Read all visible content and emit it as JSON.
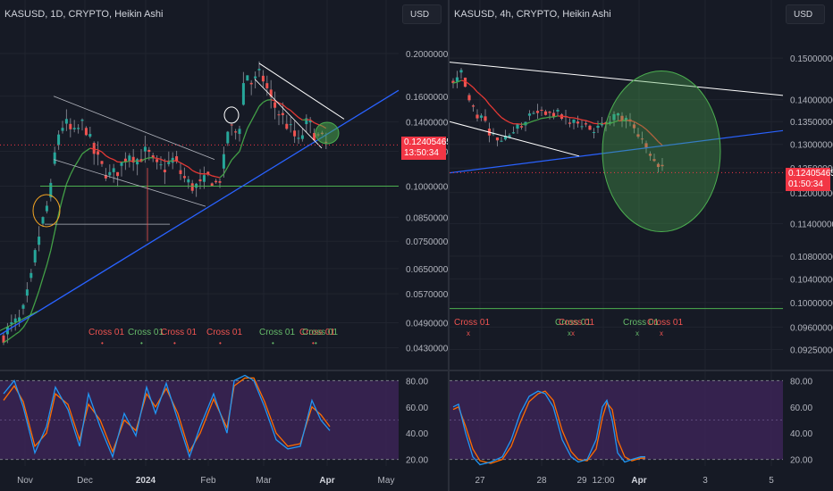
{
  "colors": {
    "background": "#161a25",
    "grid": "#20242f",
    "up_candle": "#26a69a",
    "down_candle": "#ef5350",
    "wick": "#787b86",
    "trendline_blue": "#2962ff",
    "channel_line": "#b2b5be",
    "support_green": "#4caf50",
    "cross_red": "#ef5350",
    "cross_green": "#66bb6a",
    "rsi_band": "#3b2456",
    "stoch_k": "#2196f3",
    "stoch_d": "#ff6d00",
    "price_tag": "#f23645",
    "highlight_orange": "#f5a623",
    "highlight_green": "#4caf50"
  },
  "left_panel": {
    "title": "KASUSD, 1D, CRYPTO, Heikin Ashi",
    "currency_button": "USD",
    "price_tag": {
      "price": "0.12405465",
      "countdown": "13:50:34"
    },
    "cross_label": "Cross 01",
    "x_labels": [
      "Nov",
      "Dec",
      "2024",
      "Feb",
      "Mar",
      "Apr",
      "May"
    ],
    "oscillator_labels": [
      "80.00",
      "60.00",
      "40.00",
      "20.00"
    ]
  },
  "right_panel": {
    "title": "KASUSD, 4h, CRYPTO, Heikin Ashi",
    "currency_button": "USD",
    "price_tag": {
      "price": "0.12405465",
      "countdown": "01:50:34"
    },
    "cross_label": "Cross 01",
    "x_labels": [
      "27",
      "28",
      "29",
      "12:00",
      "Apr",
      "3",
      "5"
    ],
    "oscillator_labels": [
      "80.00",
      "60.00",
      "40.00",
      "20.00"
    ]
  },
  "chart_data": [
    {
      "type": "candlestick",
      "title": "KASUSD, 1D, CRYPTO, Heikin Ashi",
      "y_axis_labels": [
        "0.20000000",
        "0.16000000",
        "0.14000000",
        "0.12000000",
        "0.10000000",
        "0.08500000",
        "0.07500000",
        "0.06500000",
        "0.05700000",
        "0.04900000",
        "0.04300000"
      ],
      "ticks": [
        0.2,
        0.16,
        0.14,
        0.12,
        0.1,
        0.085,
        0.075,
        0.065,
        0.057,
        0.049,
        0.043
      ],
      "ylim": [
        0.04,
        0.23
      ],
      "log_scale": true,
      "x_dates": [
        "Nov",
        "Dec",
        "2024",
        "Feb",
        "Mar",
        "Apr",
        "May"
      ],
      "last_price": 0.12405465,
      "support_level": 0.1,
      "price_path": [
        [
          0,
          0.046
        ],
        [
          8,
          0.048
        ],
        [
          20,
          0.05
        ],
        [
          30,
          0.06
        ],
        [
          38,
          0.075
        ],
        [
          45,
          0.085
        ],
        [
          52,
          0.095
        ],
        [
          60,
          0.13
        ],
        [
          68,
          0.14
        ],
        [
          78,
          0.13
        ],
        [
          90,
          0.14
        ],
        [
          100,
          0.12
        ],
        [
          110,
          0.11
        ],
        [
          120,
          0.105
        ],
        [
          130,
          0.11
        ],
        [
          140,
          0.12
        ],
        [
          150,
          0.115
        ],
        [
          160,
          0.12
        ],
        [
          170,
          0.11
        ],
        [
          180,
          0.11
        ],
        [
          190,
          0.115
        ],
        [
          200,
          0.105
        ],
        [
          210,
          0.1
        ],
        [
          220,
          0.1
        ],
        [
          230,
          0.105
        ],
        [
          240,
          0.1
        ],
        [
          247,
          0.115
        ],
        [
          252,
          0.14
        ],
        [
          258,
          0.13
        ],
        [
          265,
          0.14
        ],
        [
          270,
          0.185
        ],
        [
          278,
          0.17
        ],
        [
          288,
          0.18
        ],
        [
          300,
          0.155
        ],
        [
          310,
          0.145
        ],
        [
          320,
          0.135
        ],
        [
          330,
          0.125
        ],
        [
          340,
          0.14
        ],
        [
          350,
          0.13
        ],
        [
          362,
          0.124
        ]
      ],
      "cross_markers": [
        {
          "label": "Cross 01",
          "color": "red"
        },
        {
          "label": "Cross 01",
          "color": "green"
        },
        {
          "label": "Cross 01",
          "color": "red"
        },
        {
          "label": "Cross 01",
          "color": "red"
        },
        {
          "label": "Cross 01",
          "color": "green"
        },
        {
          "label": "Cross 01",
          "color": "red"
        },
        {
          "label": "Cross 01",
          "color": "green"
        }
      ],
      "oscillator": {
        "ylim": [
          15,
          85
        ],
        "k": [
          [
            0,
            70
          ],
          [
            12,
            80
          ],
          [
            22,
            60
          ],
          [
            35,
            25
          ],
          [
            48,
            45
          ],
          [
            58,
            75
          ],
          [
            72,
            58
          ],
          [
            85,
            30
          ],
          [
            95,
            70
          ],
          [
            108,
            45
          ],
          [
            122,
            22
          ],
          [
            135,
            55
          ],
          [
            148,
            38
          ],
          [
            160,
            75
          ],
          [
            170,
            55
          ],
          [
            182,
            78
          ],
          [
            195,
            50
          ],
          [
            208,
            22
          ],
          [
            220,
            45
          ],
          [
            235,
            70
          ],
          [
            250,
            40
          ],
          [
            258,
            80
          ],
          [
            270,
            84
          ],
          [
            280,
            80
          ],
          [
            292,
            60
          ],
          [
            305,
            35
          ],
          [
            318,
            28
          ],
          [
            332,
            30
          ],
          [
            345,
            65
          ],
          [
            355,
            50
          ],
          [
            365,
            42
          ]
        ],
        "d": [
          [
            0,
            65
          ],
          [
            12,
            76
          ],
          [
            22,
            64
          ],
          [
            35,
            30
          ],
          [
            48,
            40
          ],
          [
            58,
            70
          ],
          [
            72,
            62
          ],
          [
            85,
            35
          ],
          [
            95,
            62
          ],
          [
            108,
            50
          ],
          [
            122,
            26
          ],
          [
            135,
            50
          ],
          [
            148,
            42
          ],
          [
            160,
            70
          ],
          [
            170,
            60
          ],
          [
            182,
            74
          ],
          [
            195,
            55
          ],
          [
            208,
            26
          ],
          [
            220,
            40
          ],
          [
            235,
            66
          ],
          [
            250,
            44
          ],
          [
            258,
            76
          ],
          [
            270,
            82
          ],
          [
            280,
            82
          ],
          [
            292,
            64
          ],
          [
            305,
            40
          ],
          [
            318,
            30
          ],
          [
            332,
            32
          ],
          [
            345,
            60
          ],
          [
            355,
            54
          ],
          [
            365,
            45
          ]
        ]
      }
    },
    {
      "type": "candlestick",
      "title": "KASUSD, 4h, CRYPTO, Heikin Ashi",
      "y_axis_labels": [
        "0.15000000",
        "0.14000000",
        "0.13500000",
        "0.13000000",
        "0.12500000",
        "0.12000000",
        "0.11400000",
        "0.10800000",
        "0.10400000",
        "0.10000000",
        "0.09600000",
        "0.09250000"
      ],
      "ticks": [
        0.15,
        0.14,
        0.135,
        0.13,
        0.125,
        0.12,
        0.114,
        0.108,
        0.104,
        0.1,
        0.096,
        0.0925
      ],
      "ylim": [
        0.09,
        0.158
      ],
      "log_scale": true,
      "x_dates": [
        "27",
        "28",
        "29",
        "12:00",
        "Apr",
        "3",
        "5"
      ],
      "last_price": 0.12405465,
      "support_level": 0.099,
      "price_path": [
        [
          0,
          0.145
        ],
        [
          8,
          0.147
        ],
        [
          14,
          0.142
        ],
        [
          20,
          0.138
        ],
        [
          30,
          0.136
        ],
        [
          40,
          0.133
        ],
        [
          50,
          0.131
        ],
        [
          60,
          0.132
        ],
        [
          72,
          0.134
        ],
        [
          85,
          0.136
        ],
        [
          95,
          0.137
        ],
        [
          105,
          0.136
        ],
        [
          115,
          0.137
        ],
        [
          125,
          0.136
        ],
        [
          135,
          0.135
        ],
        [
          145,
          0.134
        ],
        [
          155,
          0.133
        ],
        [
          165,
          0.134
        ],
        [
          175,
          0.135
        ],
        [
          183,
          0.137
        ],
        [
          190,
          0.136
        ],
        [
          200,
          0.134
        ],
        [
          210,
          0.131
        ],
        [
          218,
          0.129
        ],
        [
          226,
          0.127
        ],
        [
          232,
          0.125
        ],
        [
          236,
          0.124
        ]
      ],
      "cross_markers": [
        {
          "label": "Cross 01",
          "color": "red"
        },
        {
          "label": "Cross 01",
          "color": "green"
        },
        {
          "label": "Cross 01",
          "color": "red"
        },
        {
          "label": "Cross 01",
          "color": "green"
        },
        {
          "label": "Cross 01",
          "color": "red"
        }
      ],
      "oscillator": {
        "ylim": [
          15,
          85
        ],
        "k": [
          [
            0,
            60
          ],
          [
            6,
            62
          ],
          [
            14,
            40
          ],
          [
            22,
            22
          ],
          [
            30,
            16
          ],
          [
            42,
            18
          ],
          [
            55,
            22
          ],
          [
            65,
            35
          ],
          [
            75,
            55
          ],
          [
            85,
            68
          ],
          [
            95,
            72
          ],
          [
            103,
            70
          ],
          [
            112,
            60
          ],
          [
            122,
            35
          ],
          [
            132,
            22
          ],
          [
            140,
            18
          ],
          [
            150,
            20
          ],
          [
            160,
            35
          ],
          [
            167,
            60
          ],
          [
            172,
            65
          ],
          [
            178,
            50
          ],
          [
            184,
            25
          ],
          [
            192,
            18
          ],
          [
            200,
            20
          ],
          [
            210,
            22
          ],
          [
            215,
            22
          ]
        ],
        "d": [
          [
            0,
            58
          ],
          [
            6,
            60
          ],
          [
            14,
            45
          ],
          [
            22,
            28
          ],
          [
            30,
            19
          ],
          [
            42,
            17
          ],
          [
            55,
            20
          ],
          [
            65,
            30
          ],
          [
            75,
            48
          ],
          [
            85,
            64
          ],
          [
            95,
            70
          ],
          [
            103,
            72
          ],
          [
            112,
            65
          ],
          [
            122,
            42
          ],
          [
            132,
            26
          ],
          [
            140,
            20
          ],
          [
            150,
            19
          ],
          [
            160,
            28
          ],
          [
            167,
            52
          ],
          [
            172,
            63
          ],
          [
            178,
            58
          ],
          [
            184,
            35
          ],
          [
            192,
            22
          ],
          [
            200,
            19
          ],
          [
            210,
            21
          ],
          [
            215,
            21
          ]
        ]
      }
    }
  ]
}
